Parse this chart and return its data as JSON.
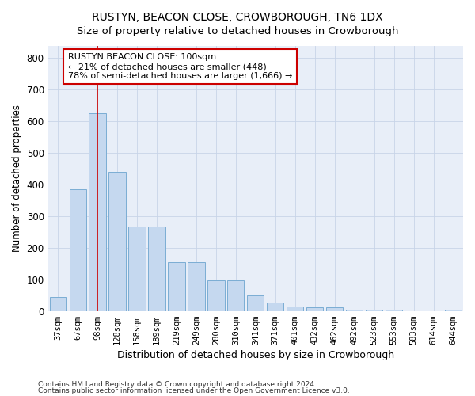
{
  "title": "RUSTYN, BEACON CLOSE, CROWBOROUGH, TN6 1DX",
  "subtitle": "Size of property relative to detached houses in Crowborough",
  "xlabel": "Distribution of detached houses by size in Crowborough",
  "ylabel": "Number of detached properties",
  "categories": [
    "37sqm",
    "67sqm",
    "98sqm",
    "128sqm",
    "158sqm",
    "189sqm",
    "219sqm",
    "249sqm",
    "280sqm",
    "310sqm",
    "341sqm",
    "371sqm",
    "401sqm",
    "432sqm",
    "462sqm",
    "492sqm",
    "523sqm",
    "553sqm",
    "583sqm",
    "614sqm",
    "644sqm"
  ],
  "values": [
    45,
    385,
    625,
    440,
    268,
    268,
    155,
    155,
    97,
    97,
    50,
    28,
    15,
    11,
    11,
    5,
    5,
    5,
    0,
    0,
    5
  ],
  "bar_color": "#c5d8ef",
  "bar_edge_color": "#7badd4",
  "vline_x": 2,
  "vline_color": "#cc0000",
  "annotation_text": "RUSTYN BEACON CLOSE: 100sqm\n← 21% of detached houses are smaller (448)\n78% of semi-detached houses are larger (1,666) →",
  "annotation_box_color": "#ffffff",
  "annotation_box_edge": "#cc0000",
  "ylim": [
    0,
    840
  ],
  "yticks": [
    0,
    100,
    200,
    300,
    400,
    500,
    600,
    700,
    800
  ],
  "footer1": "Contains HM Land Registry data © Crown copyright and database right 2024.",
  "footer2": "Contains public sector information licensed under the Open Government Licence v3.0.",
  "title_fontsize": 10,
  "subtitle_fontsize": 9.5,
  "bar_width": 0.85,
  "bg_color": "#e8eef8",
  "grid_color": "#c8d4e8"
}
